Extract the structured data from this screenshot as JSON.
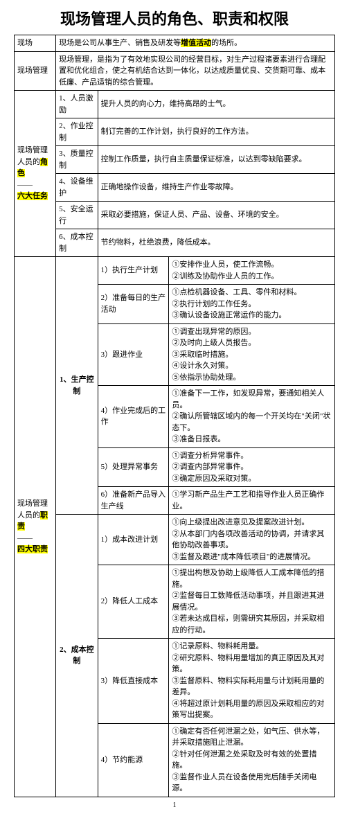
{
  "title": "现场管理人员的角色、职责和权限",
  "rows": {
    "r1c1": "现场",
    "r1c2_a": "现场是公司从事生产、销售及研发等",
    "r1c2_hl": "增值活动",
    "r1c2_b": "的场所。",
    "r2c1": "现场管理",
    "r2c2": "现场管理，是指为了有效地实现公司的经营目标，对生产过程诸要素进行合理配置和优化组合，使之有机结合达到一体化，以达成质量优良、交货期可靠、成本低廉、产品适销的综合管理。",
    "r3c1_a": "现场管理人员的",
    "r3c1_hl1": "角色",
    "r3c1_b": "——",
    "r3c1_hl2": "六大任务",
    "r3_1a": "1、人员激励",
    "r3_1b": "提升人员的向心力，维持高昂的士气。",
    "r3_2a": "2、作业控制",
    "r3_2b": "制订完善的工作计划，执行良好的工作方法。",
    "r3_3a": "3、质量控制",
    "r3_3b": "控制工作质量，执行自主质量保证标准，以达到零缺陷要求。",
    "r3_4a": "4、设备维护",
    "r3_4b": "正确地操作设备，维持生产作业零故障。",
    "r3_5a": "5、安全运行",
    "r3_5b": "采取必要措施，保证人员、产品、设备、环境的安全。",
    "r3_6a": "6、成本控制",
    "r3_6b": "节约物料，杜绝浪费，降低成本。",
    "zz_a": "现场管理人员的",
    "zz_hl": "职责",
    "zz_b": "——",
    "zz_hl2": "四大职责",
    "sec1": "1、生产控制",
    "s1_1a": "1）执行生产计划",
    "s1_1b": "①安排作业人员，使工作流畅。\n②训练及协助作业人员的工作。",
    "s1_2a": "2）准备每日的生产活动",
    "s1_2b": "①点检机器设备、工具、零件和材料。\n②执行计划的工作任务。\n③确认设备设施正常运作的能力。",
    "s1_3a": "3）跟进作业",
    "s1_3b": "①调查出现异常的原因。\n②及时向上级人员报告。\n③采取临时措施。\n④设计永久对策。\n⑤依指示协助处理。",
    "s1_4a": "4）作业完成后的工作",
    "s1_4b": "①准备下一工作，如发现异常，要通知相关人员。\n②确认所管辖区域内的每一个开关均在\"关闭\"状态下。\n③准备日报表。",
    "s1_5a": "5）处理异常事务",
    "s1_5b": "①调查分析异常事件。\n②调查内部异常事件。\n③确定原因及采取对策。",
    "s1_6a": "6）准备新产品导入生产线",
    "s1_6b": "①学习新产品生产工艺和指导作业人员正确作业。",
    "sec2": "2、成本控制",
    "s2_1a": "1）成本改进计划",
    "s2_1b": "①向上级提出改进意见及提案改进计划。\n②从本部门内各项改善活动的协调，并请求其他协助改善事项。\n③监督及跟进\"成本降低项目\"的进展情况。",
    "s2_2a": "2）降低人工成本",
    "s2_2b": "①提出构想及协助上级降低人工成本降低的措施。\n②监督每日工数降低活动事项，并且跟进其进展情况。\n③若未达成目标，则需研究其原因，并采取相应的行动。",
    "s2_3a": "3）降低直接成本",
    "s2_3b": "①记录原料、物料耗用量。\n②研究原料、物料用量增加的真正原因及其对策。\n③监督原料、物料实际耗用量与计划耗用量的差异。\n④将超过原计划耗用量的原因及采取相应的对策写出提案。",
    "s2_4a": "4）节约能源",
    "s2_4b": "①确定有否任何泄漏之处，如气压、供水等，并采取措施阻止泄漏。\n②针对任何泄漏之处采取及时有效的处置措施。\n③监督作业人员在设备使用完后随手关闭电源。"
  },
  "page": "1"
}
